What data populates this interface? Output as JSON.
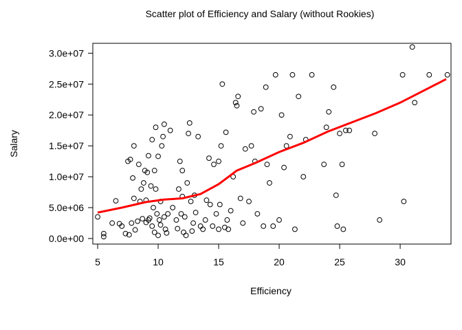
{
  "chart_data": {
    "type": "scatter",
    "title": "Scatter plot of Efficiency and Salary (without Rookies)",
    "xlabel": "Efficiency",
    "ylabel": "Salary",
    "xlim": [
      4.6,
      34.2
    ],
    "ylim": [
      -900000,
      31600000
    ],
    "x_ticks": [
      5,
      10,
      15,
      20,
      25,
      30
    ],
    "x_tick_labels": [
      "5",
      "10",
      "15",
      "20",
      "25",
      "30"
    ],
    "y_ticks": [
      0,
      5000000,
      10000000,
      15000000,
      20000000,
      25000000,
      30000000
    ],
    "y_tick_labels": [
      "0.0e+00",
      "5.0e+06",
      "1.0e+07",
      "1.5e+07",
      "2.0e+07",
      "2.5e+07",
      "3.0e+07"
    ],
    "grid": false,
    "legend": "none",
    "marker": "open-circle",
    "marker_color": "#000000",
    "smooth_color": "#ff0000",
    "smooth_line": {
      "x": [
        5.0,
        7.0,
        9.0,
        10.5,
        12.0,
        13.5,
        15.0,
        16.5,
        18.0,
        20.0,
        22.0,
        24.0,
        26.0,
        28.0,
        30.0,
        32.0,
        33.8
      ],
      "y": [
        4200000,
        5000000,
        5900000,
        6300000,
        6500000,
        7200000,
        8800000,
        11000000,
        12200000,
        14000000,
        15500000,
        17300000,
        18800000,
        20300000,
        22000000,
        24000000,
        25800000
      ]
    },
    "points": {
      "x": [
        5.0,
        5.5,
        5.5,
        6.2,
        6.5,
        6.8,
        7.0,
        7.3,
        7.5,
        7.6,
        7.7,
        7.8,
        7.9,
        8.0,
        8.0,
        8.1,
        8.3,
        8.4,
        8.5,
        8.6,
        8.7,
        8.8,
        8.9,
        9.0,
        9.0,
        9.1,
        9.2,
        9.2,
        9.3,
        9.4,
        9.5,
        9.5,
        9.6,
        9.7,
        9.7,
        9.8,
        9.8,
        9.9,
        10.0,
        10.0,
        10.1,
        10.2,
        10.2,
        10.3,
        10.4,
        10.5,
        10.5,
        10.6,
        10.7,
        10.8,
        11.0,
        11.2,
        11.5,
        11.6,
        11.7,
        11.8,
        11.9,
        12.0,
        12.0,
        12.1,
        12.2,
        12.3,
        12.4,
        12.5,
        12.6,
        12.7,
        12.8,
        12.9,
        13.0,
        13.1,
        13.3,
        13.5,
        13.7,
        13.9,
        14.0,
        14.2,
        14.3,
        14.5,
        14.6,
        14.8,
        15.0,
        15.0,
        15.1,
        15.2,
        15.3,
        15.5,
        15.6,
        15.7,
        15.8,
        16.0,
        16.2,
        16.4,
        16.5,
        16.6,
        16.8,
        17.0,
        17.2,
        17.5,
        17.7,
        17.9,
        18.0,
        18.2,
        18.5,
        18.7,
        18.9,
        19.0,
        19.2,
        19.5,
        19.7,
        20.0,
        20.2,
        20.4,
        20.6,
        20.9,
        21.1,
        21.3,
        21.6,
        22.0,
        22.2,
        22.7,
        23.7,
        23.9,
        24.1,
        24.5,
        24.7,
        24.8,
        25.0,
        25.2,
        25.3,
        25.5,
        25.8,
        27.9,
        28.3,
        30.2,
        30.3,
        31.0,
        31.2,
        32.4,
        33.9
      ],
      "y": [
        3500000,
        300000,
        800000,
        2500000,
        6100000,
        2400000,
        2000000,
        800000,
        12500000,
        600000,
        12800000,
        2500000,
        9800000,
        15000000,
        6500000,
        1400000,
        2800000,
        12000000,
        6000000,
        8000000,
        3200000,
        9000000,
        11000000,
        2600000,
        6200000,
        10700000,
        13400000,
        3000000,
        3300000,
        8500000,
        2000000,
        16000000,
        5000000,
        1000000,
        11000000,
        8000000,
        18000000,
        4000000,
        13300000,
        500000,
        3000000,
        2200000,
        6000000,
        15000000,
        16500000,
        18500000,
        3500000,
        1500000,
        900000,
        4000000,
        17500000,
        5000000,
        3000000,
        1600000,
        8000000,
        12500000,
        4000000,
        6800000,
        11000000,
        1000000,
        3500000,
        500000,
        9000000,
        17000000,
        18700000,
        6000000,
        1200000,
        2500000,
        7000000,
        4200000,
        16500000,
        2000000,
        1500000,
        3000000,
        6200000,
        13000000,
        5500000,
        2000000,
        12000000,
        4000000,
        1500000,
        12500000,
        5500000,
        15000000,
        25000000,
        1800000,
        17200000,
        3000000,
        1500000,
        4500000,
        10000000,
        22000000,
        21500000,
        23000000,
        6500000,
        2500000,
        14500000,
        6000000,
        15000000,
        20500000,
        12500000,
        4000000,
        21000000,
        2000000,
        24500000,
        12000000,
        9000000,
        2000000,
        26500000,
        3000000,
        20000000,
        11500000,
        15000000,
        16500000,
        26500000,
        1500000,
        23000000,
        10000000,
        16000000,
        26500000,
        12000000,
        18000000,
        20500000,
        24500000,
        7000000,
        2000000,
        17000000,
        12000000,
        1500000,
        17500000,
        17500000,
        17000000,
        3000000,
        26500000,
        6000000,
        31000000,
        22000000,
        26500000,
        26500000
      ]
    }
  }
}
